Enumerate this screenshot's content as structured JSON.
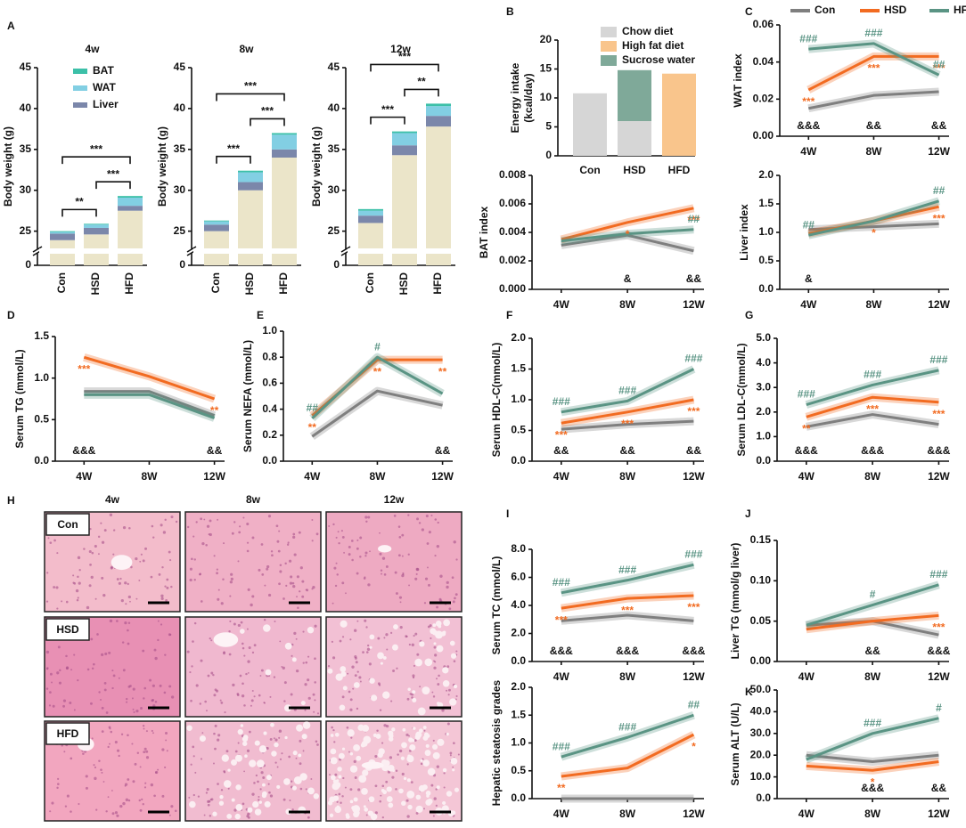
{
  "chart_data": [
    {
      "type": "stacked_bar",
      "panel": "A",
      "title": "4w",
      "ylabel": "Body weight (g)",
      "categories": [
        "Con",
        "HSD",
        "HFD"
      ],
      "series": [
        {
          "color": "#ebe5c9",
          "values": [
            23.9,
            24.6,
            27.5
          ]
        },
        {
          "name": "Liver",
          "color": "#7b87aa",
          "values": [
            0.8,
            0.8,
            0.6
          ]
        },
        {
          "name": "WAT",
          "color": "#82cfe3",
          "values": [
            0.2,
            0.4,
            1.0
          ]
        },
        {
          "name": "BAT",
          "color": "#3cc0a8",
          "values": [
            0.1,
            0.1,
            0.2
          ]
        }
      ],
      "ylim": [
        0,
        45
      ],
      "ybreak": [
        1.5,
        23
      ],
      "yticks": [
        0,
        25,
        30,
        35,
        40,
        45
      ],
      "legend": "upper left",
      "comparisons": [
        {
          "from": "Con",
          "to": "HSD",
          "label": "**"
        },
        {
          "from": "HSD",
          "to": "HFD",
          "label": "***"
        },
        {
          "from": "Con",
          "to": "HFD",
          "label": "***"
        }
      ]
    },
    {
      "type": "stacked_bar",
      "title": "8w",
      "ylabel": "Body weight (g)",
      "categories": [
        "Con",
        "HSD",
        "HFD"
      ],
      "series": [
        {
          "color": "#ebe5c9",
          "values": [
            25.0,
            30.0,
            34.0
          ]
        },
        {
          "name": "Liver",
          "color": "#7b87aa",
          "values": [
            0.8,
            1.0,
            1.0
          ]
        },
        {
          "name": "WAT",
          "color": "#82cfe3",
          "values": [
            0.4,
            1.2,
            1.8
          ]
        },
        {
          "name": "BAT",
          "color": "#3cc0a8",
          "values": [
            0.1,
            0.2,
            0.2
          ]
        }
      ],
      "ylim": [
        0,
        45
      ],
      "ybreak": [
        1.5,
        23
      ],
      "yticks": [
        0,
        25,
        30,
        35,
        40,
        45
      ],
      "comparisons": [
        {
          "from": "Con",
          "to": "HSD",
          "label": "***"
        },
        {
          "from": "HSD",
          "to": "HFD",
          "label": "***"
        },
        {
          "from": "Con",
          "to": "HFD",
          "label": "***"
        }
      ]
    },
    {
      "type": "stacked_bar",
      "title": "12w",
      "ylabel": "Body weight (g)",
      "categories": [
        "Con",
        "HSD",
        "HFD"
      ],
      "series": [
        {
          "color": "#ebe5c9",
          "values": [
            26.0,
            34.3,
            37.8
          ]
        },
        {
          "name": "Liver",
          "color": "#7b87aa",
          "values": [
            0.9,
            1.2,
            1.3
          ]
        },
        {
          "name": "WAT",
          "color": "#82cfe3",
          "values": [
            0.6,
            1.5,
            1.2
          ]
        },
        {
          "name": "BAT",
          "color": "#3cc0a8",
          "values": [
            0.2,
            0.2,
            0.3
          ]
        }
      ],
      "ylim": [
        0,
        45
      ],
      "ybreak": [
        1.5,
        23
      ],
      "yticks": [
        0,
        25,
        30,
        35,
        40,
        45
      ],
      "comparisons": [
        {
          "from": "Con",
          "to": "HSD",
          "label": "***"
        },
        {
          "from": "HSD",
          "to": "HFD",
          "label": "**"
        },
        {
          "from": "Con",
          "to": "HFD",
          "label": "***"
        }
      ]
    },
    {
      "type": "stacked_bar",
      "panel": "B",
      "ylabel": [
        "Energy intake",
        "(kcal/day)"
      ],
      "categories": [
        "Con",
        "HSD",
        "HFD"
      ],
      "series": [
        {
          "name": "Chow diet",
          "color": "#d6d6d6",
          "values": [
            10.8,
            6.0,
            null
          ]
        },
        {
          "name": "High fat diet",
          "color": "#f9c58c",
          "values": [
            null,
            null,
            14.2
          ]
        },
        {
          "name": "Sucrose water",
          "color": "#7fa999",
          "values": [
            null,
            8.8,
            null
          ]
        }
      ],
      "ylim": [
        0,
        20
      ],
      "yticks": [
        0,
        5,
        10,
        15,
        20
      ],
      "legend": "upper right"
    },
    {
      "type": "line",
      "ylabel": "BAT index",
      "categories": [
        "4W",
        "8W",
        "12W"
      ],
      "series": [
        {
          "name": "Con",
          "color": "#7f7f7f",
          "values": [
            0.0031,
            0.0038,
            0.0027
          ]
        },
        {
          "name": "HSD",
          "color": "#f26b21",
          "values": [
            0.0035,
            0.0047,
            0.0057
          ],
          "labels": [
            null,
            "*",
            "***"
          ]
        },
        {
          "name": "HFD",
          "color": "#5a9484",
          "values": [
            0.0034,
            0.0039,
            0.0042
          ],
          "labels": [
            null,
            null,
            "##"
          ]
        }
      ],
      "bottom_labels": [
        null,
        "&",
        "&&"
      ],
      "ylim": [
        0,
        0.008
      ],
      "yticks": [
        {
          "value": 0,
          "label": "0.000"
        },
        0.002,
        0.004,
        0.006,
        0.008
      ]
    },
    {
      "type": "line",
      "panel": "C",
      "ylabel": "WAT index",
      "categories": [
        "4W",
        "8W",
        "12W"
      ],
      "series": [
        {
          "name": "Con",
          "color": "#7f7f7f",
          "values": [
            0.015,
            0.022,
            0.024
          ]
        },
        {
          "name": "HSD",
          "color": "#f26b21",
          "values": [
            0.025,
            0.043,
            0.043
          ],
          "labels": [
            "***",
            "***",
            "***"
          ]
        },
        {
          "name": "HFD",
          "color": "#5a9484",
          "values": [
            0.047,
            0.05,
            0.033
          ],
          "labels": [
            "###",
            "###",
            "##"
          ]
        }
      ],
      "bottom_labels": [
        "&&&",
        "&&",
        "&&"
      ],
      "legend": "top",
      "ylim": [
        0,
        0.06
      ],
      "yticks": [
        {
          "value": 0,
          "label": "0.00"
        },
        0.02,
        0.04,
        0.06
      ]
    },
    {
      "type": "line",
      "ylabel": "Liver index",
      "categories": [
        "4W",
        "8W",
        "12W"
      ],
      "series": [
        {
          "name": "Con",
          "color": "#7f7f7f",
          "values": [
            1.05,
            1.1,
            1.15
          ]
        },
        {
          "name": "HSD",
          "color": "#f26b21",
          "values": [
            0.98,
            1.2,
            1.45
          ],
          "labels": [
            null,
            "*",
            "***"
          ]
        },
        {
          "name": "HFD",
          "color": "#5a9484",
          "values": [
            0.95,
            1.2,
            1.55
          ],
          "labels": [
            "##",
            null,
            "##"
          ]
        }
      ],
      "bottom_labels": [
        "&",
        null,
        null
      ],
      "ylim": [
        0,
        2
      ],
      "yticks": [
        {
          "value": 0,
          "label": "0.0"
        },
        0.5,
        {
          "value": 1,
          "label": "1.0"
        },
        1.5,
        {
          "value": 2,
          "label": "2.0"
        }
      ]
    },
    {
      "type": "line",
      "panel": "D",
      "ylabel": "Serum TG (mmol/L)",
      "categories": [
        "4W",
        "8W",
        "12W"
      ],
      "series": [
        {
          "name": "Con",
          "color": "#7f7f7f",
          "values": [
            0.84,
            0.84,
            0.55
          ]
        },
        {
          "name": "HSD",
          "color": "#f26b21",
          "values": [
            1.25,
            1.02,
            0.75
          ],
          "labels": [
            "***",
            null,
            "**"
          ]
        },
        {
          "name": "HFD",
          "color": "#5a9484",
          "values": [
            0.8,
            0.8,
            0.52
          ]
        }
      ],
      "bottom_labels": [
        "&&&",
        null,
        "&&"
      ],
      "ylim": [
        0,
        1.5
      ],
      "yticks": [
        {
          "value": 0,
          "label": "0.0"
        },
        0.5,
        {
          "value": 1,
          "label": "1.0"
        },
        1.5
      ]
    },
    {
      "type": "line",
      "panel": "E",
      "ylabel": "Serum NEFA (mmol/L)",
      "categories": [
        "4W",
        "8W",
        "12W"
      ],
      "series": [
        {
          "name": "Con",
          "color": "#7f7f7f",
          "values": [
            0.19,
            0.54,
            0.43
          ]
        },
        {
          "name": "HSD",
          "color": "#f26b21",
          "values": [
            0.35,
            0.78,
            0.78
          ],
          "labels": [
            "**",
            "**",
            "**"
          ]
        },
        {
          "name": "HFD",
          "color": "#5a9484",
          "values": [
            0.33,
            0.8,
            0.52
          ],
          "labels": [
            "##",
            "#",
            null
          ]
        }
      ],
      "bottom_labels": [
        null,
        null,
        "&&"
      ],
      "ylim": [
        0,
        1
      ],
      "yticks": [
        {
          "value": 0,
          "label": "0.0"
        },
        0.2,
        0.4,
        0.6,
        0.8,
        {
          "value": 1,
          "label": "1.0"
        }
      ]
    },
    {
      "type": "line",
      "panel": "F",
      "ylabel": "Serum HDL-C(mmol/L)",
      "categories": [
        "4W",
        "8W",
        "12W"
      ],
      "series": [
        {
          "name": "Con",
          "color": "#7f7f7f",
          "values": [
            0.52,
            0.6,
            0.65
          ]
        },
        {
          "name": "HSD",
          "color": "#f26b21",
          "values": [
            0.62,
            0.8,
            1.0
          ],
          "labels": [
            "***",
            "***",
            "***"
          ]
        },
        {
          "name": "HFD",
          "color": "#5a9484",
          "values": [
            0.8,
            0.98,
            1.5
          ],
          "labels": [
            "###",
            "###",
            "###"
          ]
        }
      ],
      "bottom_labels": [
        "&&",
        "&&",
        "&&"
      ],
      "ylim": [
        0,
        2
      ],
      "yticks": [
        {
          "value": 0,
          "label": "0.0"
        },
        0.5,
        {
          "value": 1,
          "label": "1.0"
        },
        1.5,
        {
          "value": 2,
          "label": "2.0"
        }
      ]
    },
    {
      "type": "line",
      "panel": "G",
      "ylabel": "Serum LDL-C(mmol/L)",
      "categories": [
        "4W",
        "8W",
        "12W"
      ],
      "series": [
        {
          "name": "Con",
          "color": "#7f7f7f",
          "values": [
            1.4,
            1.9,
            1.5
          ]
        },
        {
          "name": "HSD",
          "color": "#f26b21",
          "values": [
            1.8,
            2.6,
            2.4
          ],
          "labels": [
            "**",
            "***",
            "***"
          ]
        },
        {
          "name": "HFD",
          "color": "#5a9484",
          "values": [
            2.3,
            3.1,
            3.7
          ],
          "labels": [
            "###",
            "###",
            "###"
          ]
        }
      ],
      "bottom_labels": [
        "&&&",
        "&&&",
        "&&&"
      ],
      "ylim": [
        0,
        5
      ],
      "yticks": [
        {
          "value": 0,
          "label": "0.0"
        },
        {
          "value": 1,
          "label": "1.0"
        },
        {
          "value": 2,
          "label": "2.0"
        },
        {
          "value": 3,
          "label": "3.0"
        },
        {
          "value": 4,
          "label": "4.0"
        },
        {
          "value": 5,
          "label": "5.0"
        }
      ]
    },
    {
      "type": "line",
      "panel": "I",
      "ylabel": "Serum TC (mmol/L)",
      "categories": [
        "4W",
        "8W",
        "12W"
      ],
      "series": [
        {
          "name": "Con",
          "color": "#7f7f7f",
          "values": [
            2.9,
            3.3,
            2.9
          ]
        },
        {
          "name": "HSD",
          "color": "#f26b21",
          "values": [
            3.8,
            4.5,
            4.7
          ],
          "labels": [
            "***",
            "***",
            "***"
          ]
        },
        {
          "name": "HFD",
          "color": "#5a9484",
          "values": [
            4.9,
            5.8,
            6.9
          ],
          "labels": [
            "###",
            "###",
            "###"
          ]
        }
      ],
      "bottom_labels": [
        "&&&",
        "&&&",
        "&&&"
      ],
      "ylim": [
        0,
        8
      ],
      "yticks": [
        {
          "value": 0,
          "label": "0.0"
        },
        {
          "value": 2,
          "label": "2.0"
        },
        {
          "value": 4,
          "label": "4.0"
        },
        {
          "value": 6,
          "label": "6.0"
        },
        {
          "value": 8,
          "label": "8.0"
        }
      ]
    },
    {
      "type": "line",
      "ylabel": "Hepatic steatosis grades",
      "categories": [
        "4W",
        "8W",
        "12W"
      ],
      "series": [
        {
          "name": "Con",
          "color": "#7f7f7f",
          "values": [
            0,
            0,
            0
          ]
        },
        {
          "name": "HSD",
          "color": "#f26b21",
          "values": [
            0.4,
            0.55,
            1.15
          ],
          "labels": [
            "**",
            null,
            "*"
          ]
        },
        {
          "name": "HFD",
          "color": "#5a9484",
          "values": [
            0.75,
            1.1,
            1.5
          ],
          "labels": [
            "###",
            "###",
            "##"
          ]
        }
      ],
      "ylim": [
        0,
        2
      ],
      "yticks": [
        {
          "value": 0,
          "label": "0.0"
        },
        0.5,
        {
          "value": 1,
          "label": "1.0"
        },
        1.5,
        {
          "value": 2,
          "label": "2.0"
        }
      ]
    },
    {
      "type": "line",
      "panel": "J",
      "ylabel": "Liver TG (mmol/g liver)",
      "categories": [
        "4W",
        "8W",
        "12W"
      ],
      "series": [
        {
          "name": "Con",
          "color": "#7f7f7f",
          "values": [
            0.045,
            0.05,
            0.033
          ]
        },
        {
          "name": "HSD",
          "color": "#f26b21",
          "values": [
            0.04,
            0.05,
            0.057
          ],
          "labels": [
            null,
            null,
            "***"
          ]
        },
        {
          "name": "HFD",
          "color": "#5a9484",
          "values": [
            0.045,
            0.07,
            0.095
          ],
          "labels": [
            null,
            "#",
            "###"
          ]
        }
      ],
      "bottom_labels": [
        null,
        "&&",
        "&&&"
      ],
      "ylim": [
        0,
        0.15
      ],
      "yticks": [
        {
          "value": 0,
          "label": "0.00"
        },
        0.05,
        {
          "value": 0.1,
          "label": "0.10"
        },
        0.15
      ]
    },
    {
      "type": "line",
      "panel": "K",
      "ylabel": "Serum ALT (U/L)",
      "categories": [
        "4W",
        "8W",
        "12W"
      ],
      "series": [
        {
          "name": "Con",
          "color": "#7f7f7f",
          "values": [
            20,
            17,
            20
          ]
        },
        {
          "name": "HSD",
          "color": "#f26b21",
          "values": [
            15,
            13,
            17
          ],
          "labels": [
            null,
            "*",
            null
          ]
        },
        {
          "name": "HFD",
          "color": "#5a9484",
          "values": [
            18,
            30,
            37
          ],
          "labels": [
            null,
            "###",
            "#"
          ]
        }
      ],
      "bottom_labels": [
        null,
        "&&&",
        "&&"
      ],
      "ylim": [
        0,
        50
      ],
      "yticks": [
        {
          "value": 0,
          "label": "0.0"
        },
        {
          "value": 10,
          "label": "10.0"
        },
        {
          "value": 20,
          "label": "20.0"
        },
        {
          "value": 30,
          "label": "30.0"
        },
        {
          "value": 40,
          "label": "40.0"
        },
        {
          "value": 50,
          "label": "50.0"
        }
      ]
    }
  ],
  "histology": {
    "panel": "H",
    "columns": [
      "4w",
      "8w",
      "12w"
    ],
    "rows": [
      "Con",
      "HSD",
      "HFD"
    ]
  }
}
